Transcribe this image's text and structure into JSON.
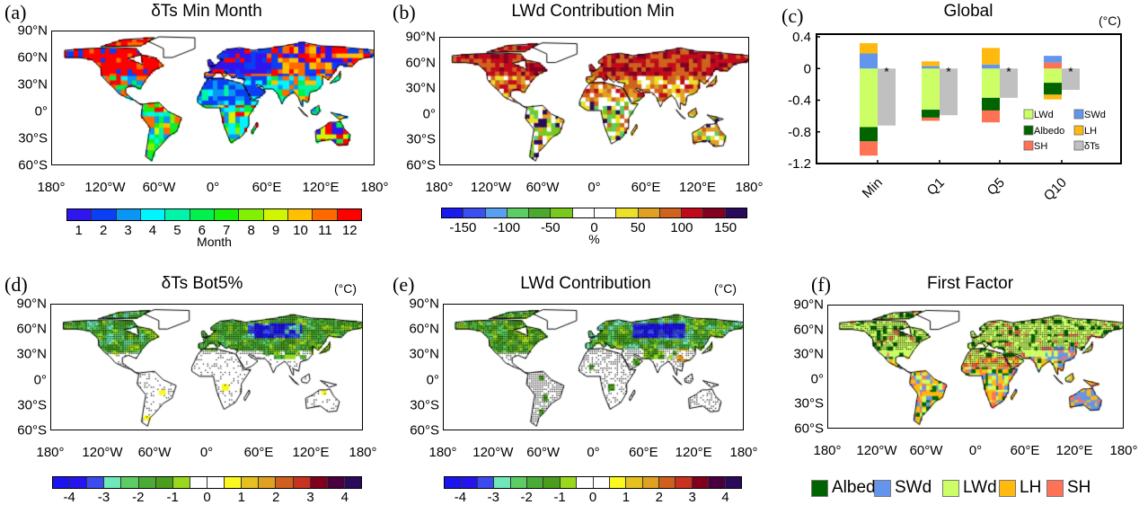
{
  "lat_labels": [
    "90°N",
    "60°N",
    "30°N",
    "0°",
    "30°S",
    "60°S"
  ],
  "lon_labels": [
    "180°",
    "120°W",
    "60°W",
    "0°",
    "60°E",
    "120°E",
    "180°"
  ],
  "panels": {
    "a": {
      "label": "(a)",
      "title": "δTs  Min  Month",
      "colorbar": {
        "labels": [
          "1",
          "2",
          "3",
          "4",
          "5",
          "6",
          "7",
          "8",
          "9",
          "10",
          "11",
          "12"
        ],
        "unit": "Month",
        "colors": [
          "#2f16ee",
          "#0a3ff5",
          "#0a96f5",
          "#00f5ff",
          "#00f5a8",
          "#00f04e",
          "#1bf00a",
          "#82f000",
          "#d2f500",
          "#ffc000",
          "#ff6a00",
          "#ff0000"
        ]
      }
    },
    "b": {
      "label": "(b)",
      "title": "LWd  Contribution  Min",
      "colorbar": {
        "labels": [
          "-150",
          "-100",
          "-50",
          "0",
          "50",
          "100",
          "150"
        ],
        "unit": "%",
        "colors": [
          "#1a1aee",
          "#3a50f0",
          "#5aa0f0",
          "#5ccc64",
          "#4aa82e",
          "#78c81e",
          "#ffffff",
          "#ffffff",
          "#ece02a",
          "#e0a024",
          "#d0621e",
          "#c00a1c",
          "#820020",
          "#2a0a5a"
        ]
      }
    },
    "c": {
      "label": "(c)",
      "title": "Global",
      "unit": "(°C)"
    },
    "d": {
      "label": "(d)",
      "title": "δTs  Bot5%",
      "unit": "(°C)",
      "colorbar": {
        "labels": [
          "-4",
          "-3",
          "-2",
          "-1",
          "0",
          "1",
          "2",
          "3",
          "4"
        ],
        "colors": [
          "#1a14f0",
          "#2414f0",
          "#3a4cf0",
          "#6ee8b8",
          "#5ccc64",
          "#4aac36",
          "#4a9e1e",
          "#9ad81e",
          "#ffffff",
          "#ffffff",
          "#faf81e",
          "#e6c01e",
          "#e0a020",
          "#d0601e",
          "#c8321e",
          "#82001e",
          "#4a0040",
          "#2a0a5a"
        ]
      }
    },
    "e": {
      "label": "(e)",
      "title": "LWd   Contribution",
      "unit": "(°C)",
      "colorbar": {
        "labels": [
          "-4",
          "-3",
          "-2",
          "-1",
          "0",
          "1",
          "2",
          "3",
          "4"
        ]
      }
    },
    "f": {
      "label": "(f)",
      "title": "First   Factor",
      "legend": [
        {
          "name": "Albedo",
          "color": "#006400"
        },
        {
          "name": "SWd",
          "color": "#6495ed"
        },
        {
          "name": "LWd",
          "color": "#ccff66"
        },
        {
          "name": "LH",
          "color": "#ffb90f"
        },
        {
          "name": "SH",
          "color": "#ff7256"
        }
      ]
    }
  },
  "chart_data": {
    "type": "bar",
    "title": "Global",
    "ylabel": "(°C)",
    "xlabel": "",
    "ylim": [
      -1.2,
      0.4
    ],
    "yticks": [
      "0.4",
      "0",
      "-0.4",
      "-0.8",
      "-1.2"
    ],
    "categories": [
      "Min",
      "Q1",
      "Q5",
      "Q10"
    ],
    "stacked_series": [
      {
        "name": "LWd",
        "color": "#ccff66",
        "values": [
          -0.74,
          -0.52,
          -0.37,
          -0.18
        ]
      },
      {
        "name": "Albedo",
        "color": "#006400",
        "values": [
          -0.18,
          -0.1,
          -0.16,
          -0.15
        ]
      },
      {
        "name": "SH",
        "color": "#ff7256",
        "values": [
          -0.18,
          -0.04,
          -0.15,
          0.075
        ]
      },
      {
        "name": "SWd",
        "color": "#6495ed",
        "values": [
          0.19,
          0.03,
          0.05,
          0.085
        ]
      },
      {
        "name": "LH",
        "color": "#ffb90f",
        "values": [
          0.13,
          0.06,
          0.21,
          -0.06
        ]
      }
    ],
    "total_series": {
      "name": "δTs",
      "color": "#c0c0c0",
      "values": [
        -0.72,
        -0.59,
        -0.37,
        -0.27
      ],
      "significance_marker": "*"
    },
    "legend": [
      "LWd",
      "SWd",
      "Albedo",
      "LH",
      "SH",
      "δTs"
    ],
    "legend_position": "lower-right"
  }
}
